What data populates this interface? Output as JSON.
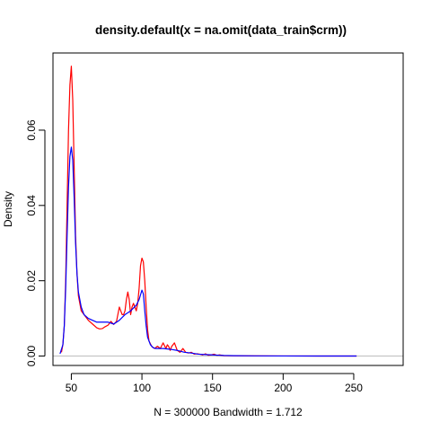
{
  "chart_data": {
    "type": "line",
    "title": "density.default(x = na.omit(data_train$crm))",
    "xlabel": "N = 300000   Bandwidth = 1.712",
    "ylabel": "Density",
    "xlim": [
      37,
      285
    ],
    "ylim": [
      -0.0025,
      0.0805
    ],
    "x_ticks": [
      50,
      100,
      150,
      200,
      250
    ],
    "y_ticks": [
      0.0,
      0.02,
      0.04,
      0.06
    ],
    "y_tick_labels": [
      "0.00",
      "0.02",
      "0.04",
      "0.06"
    ],
    "grid": false,
    "zero_line": true,
    "series": [
      {
        "color": "#ff0000",
        "x": [
          43,
          44,
          45,
          46,
          47,
          48,
          49,
          50,
          51,
          52,
          53,
          54,
          55,
          57,
          59,
          62,
          65,
          68,
          70,
          72,
          74,
          76,
          78,
          80,
          82,
          84,
          86,
          87,
          88,
          89,
          90,
          91,
          92,
          93,
          94,
          95,
          96,
          97,
          98,
          99,
          100,
          101,
          102,
          103,
          104,
          105,
          107,
          109,
          111,
          113,
          115,
          117,
          118,
          119,
          120,
          121,
          123,
          125,
          127,
          129,
          131,
          133,
          135,
          137,
          139,
          141,
          143,
          145,
          147,
          149,
          151,
          153,
          155,
          158,
          165,
          180,
          200,
          225,
          252
        ],
        "y": [
          0.001,
          0.003,
          0.008,
          0.02,
          0.04,
          0.06,
          0.072,
          0.077,
          0.068,
          0.05,
          0.032,
          0.022,
          0.016,
          0.012,
          0.011,
          0.0095,
          0.0085,
          0.0075,
          0.0072,
          0.0073,
          0.0078,
          0.0082,
          0.0092,
          0.0084,
          0.0092,
          0.013,
          0.011,
          0.011,
          0.012,
          0.015,
          0.017,
          0.015,
          0.011,
          0.013,
          0.014,
          0.013,
          0.012,
          0.014,
          0.018,
          0.024,
          0.026,
          0.025,
          0.02,
          0.013,
          0.007,
          0.004,
          0.0025,
          0.002,
          0.0026,
          0.002,
          0.0035,
          0.002,
          0.003,
          0.0025,
          0.0015,
          0.0025,
          0.0035,
          0.0015,
          0.001,
          0.002,
          0.001,
          0.0008,
          0.001,
          0.0005,
          0.0006,
          0.0005,
          0.0003,
          0.0006,
          0.0002,
          0.0003,
          0.0005,
          0.0002,
          0.0003,
          0.0001,
          6e-05,
          3e-05,
          2e-05,
          1e-05,
          0.0
        ]
      },
      {
        "color": "#0000ff",
        "x": [
          42,
          44,
          45,
          46,
          47,
          48,
          49,
          50,
          51,
          52,
          53,
          54,
          55,
          57,
          59,
          62,
          65,
          68,
          72,
          76,
          80,
          84,
          88,
          92,
          96,
          98,
          100,
          101,
          102,
          103,
          104,
          106,
          108,
          110,
          115,
          120,
          125,
          130,
          135,
          140,
          145,
          150,
          155,
          158,
          165,
          180,
          200,
          225,
          252
        ],
        "y": [
          0.0006,
          0.003,
          0.008,
          0.018,
          0.032,
          0.045,
          0.053,
          0.0555,
          0.052,
          0.042,
          0.03,
          0.022,
          0.017,
          0.013,
          0.011,
          0.01,
          0.0095,
          0.009,
          0.009,
          0.009,
          0.0085,
          0.0095,
          0.011,
          0.012,
          0.0135,
          0.015,
          0.0175,
          0.0165,
          0.012,
          0.008,
          0.005,
          0.003,
          0.0022,
          0.002,
          0.002,
          0.0018,
          0.0015,
          0.001,
          0.0008,
          0.0005,
          0.0004,
          0.0003,
          0.0002,
          0.00015,
          0.0001,
          5e-05,
          2e-05,
          1e-05,
          0.0
        ]
      }
    ]
  }
}
